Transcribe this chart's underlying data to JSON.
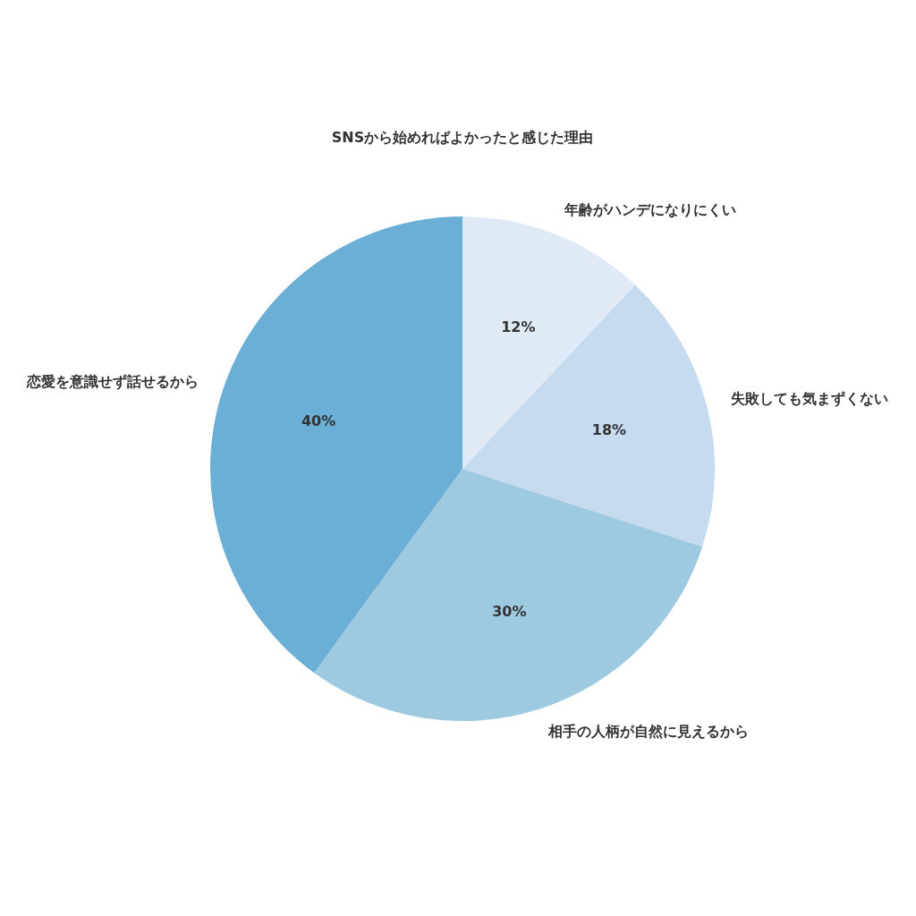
{
  "chart_data": {
    "type": "pie",
    "title": "SNSから始めればよかったと感じた理由",
    "categories": [
      "年齢がハンデになりにくい",
      "失敗しても気まずくない",
      "相手の人柄が自然に見えるから",
      "恋愛を意識せず話せるから"
    ],
    "values": [
      12,
      18,
      30,
      40
    ],
    "colors": [
      "#dfeaf6",
      "#c6dbef",
      "#9ecae1",
      "#6baed6"
    ],
    "value_labels": [
      "12%",
      "18%",
      "30%",
      "40%"
    ],
    "legend": false
  }
}
